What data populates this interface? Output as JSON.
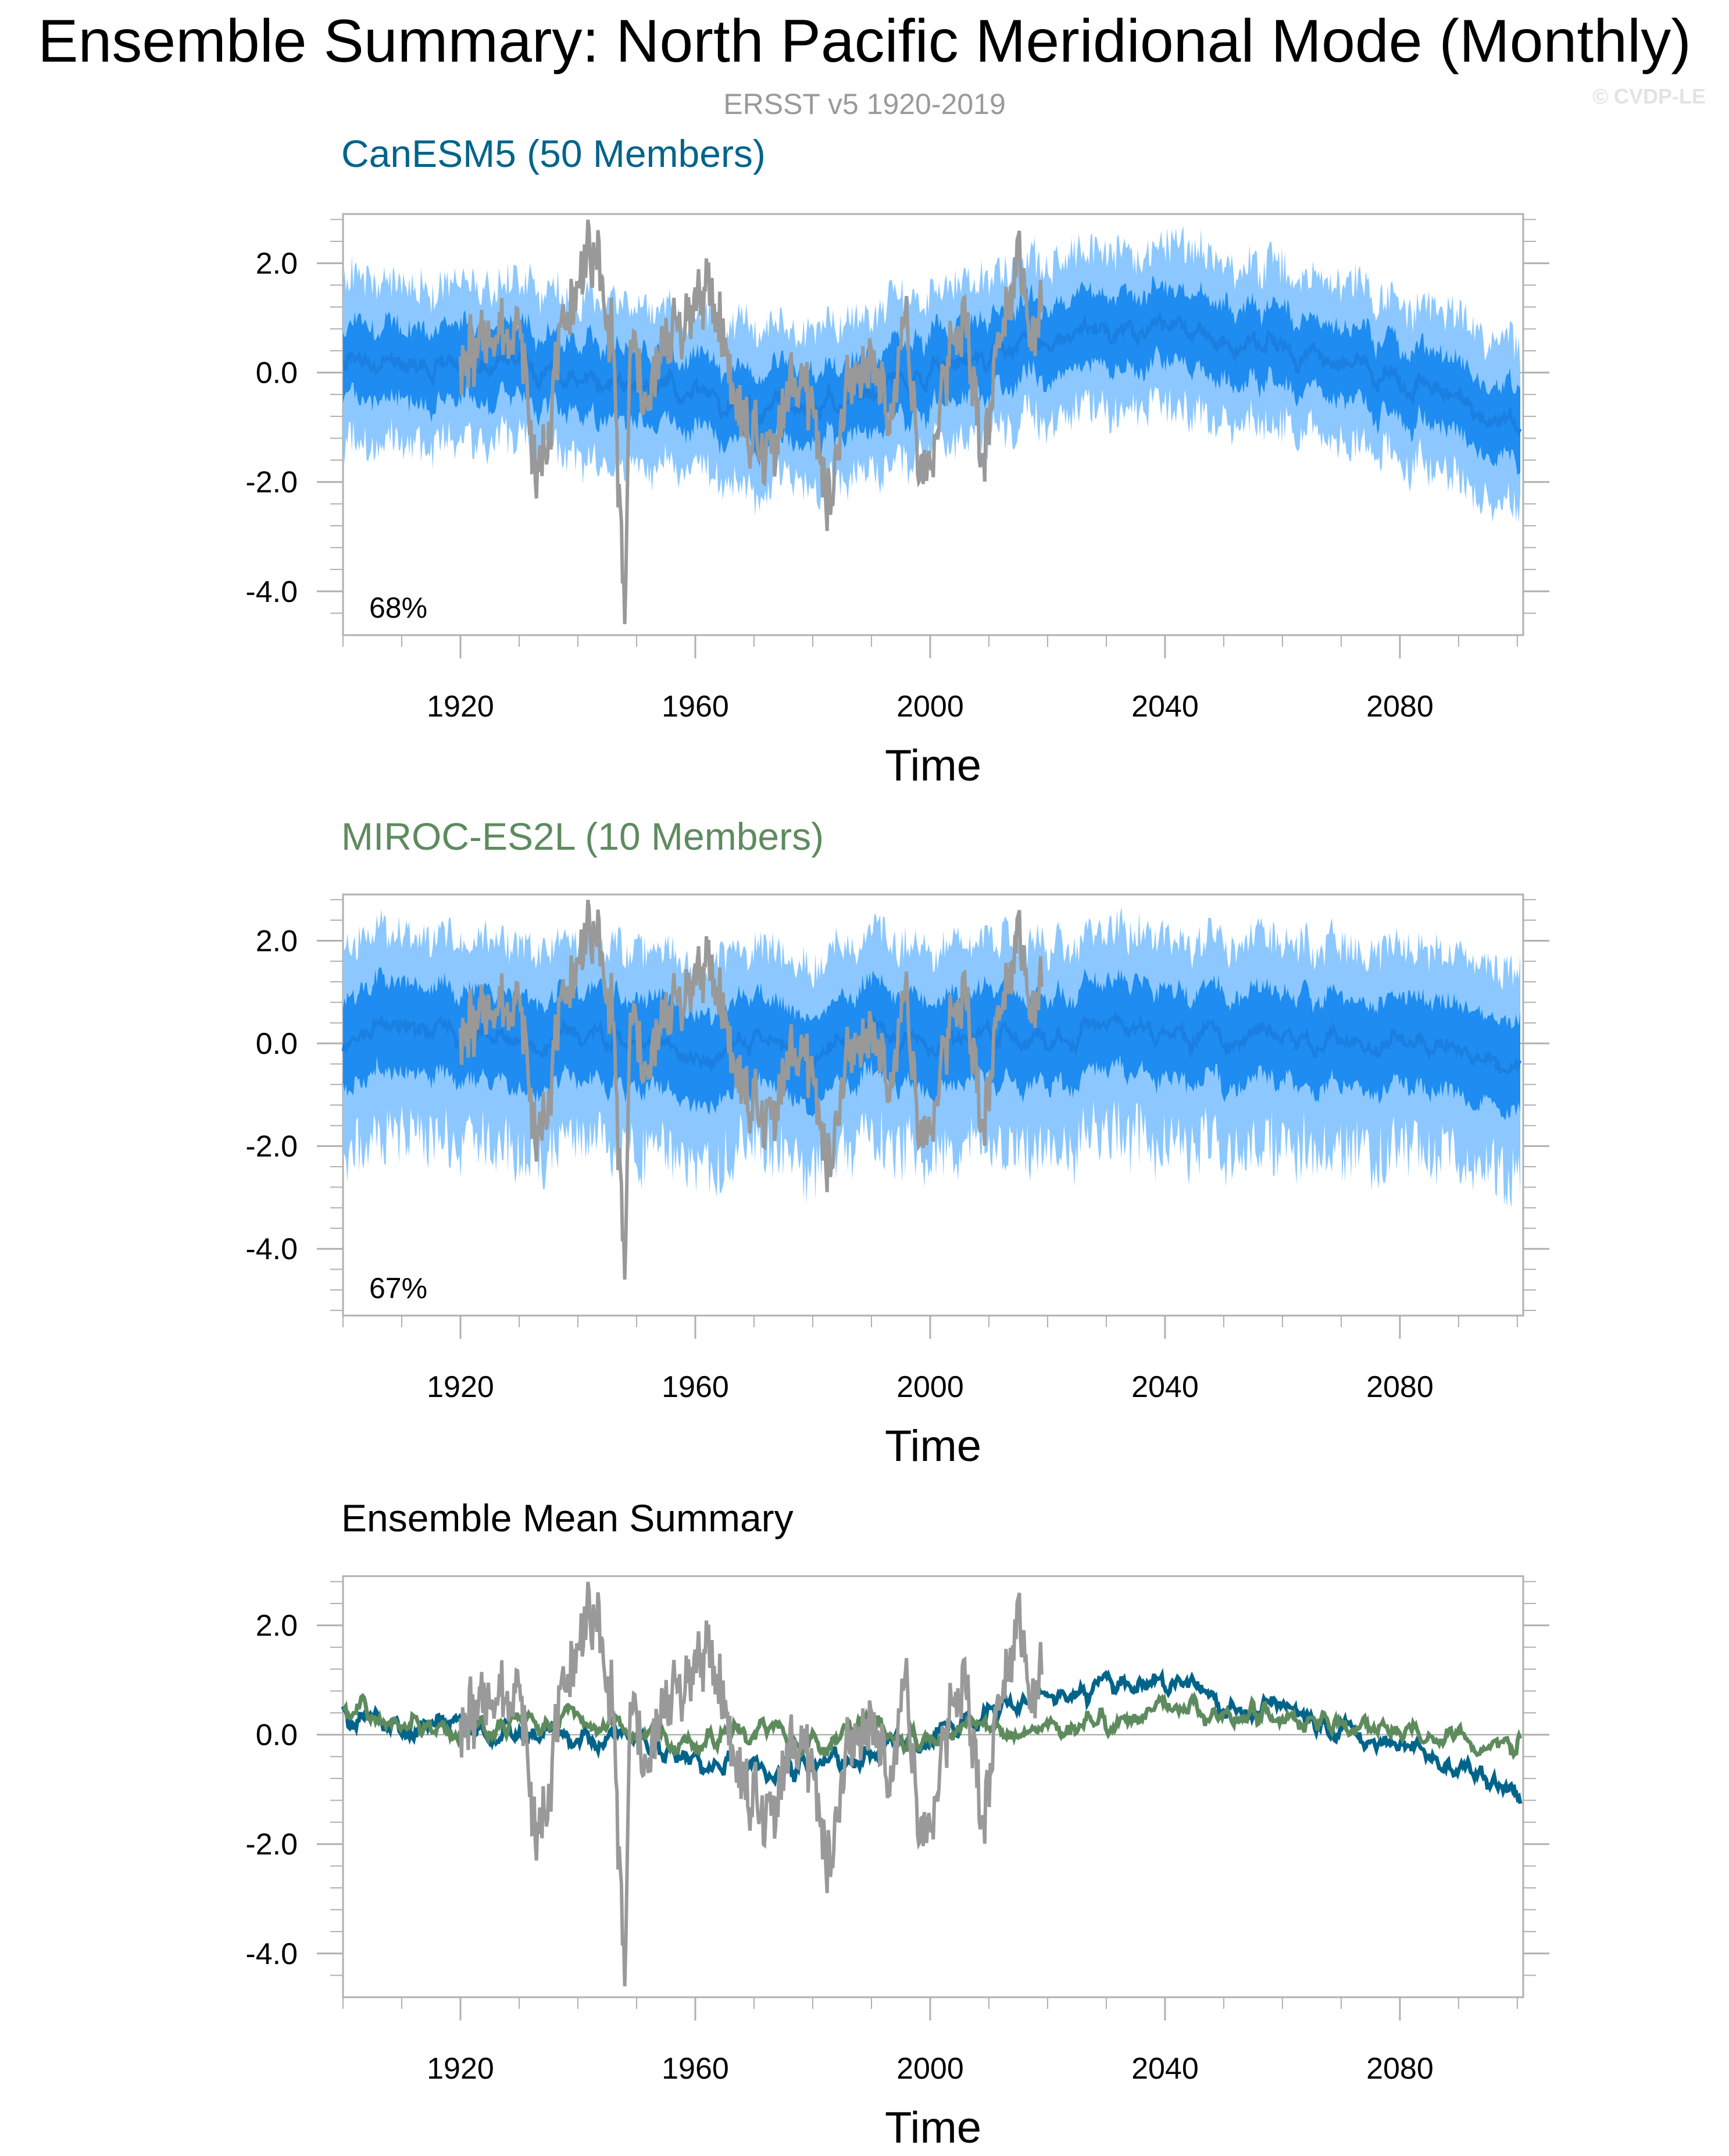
{
  "header": {
    "title": "Ensemble Summary: North Pacific Meridional Mode (Monthly)",
    "subtitle": "ERSST v5 1920-2019",
    "copyright": "© CVDP-LE"
  },
  "colors": {
    "observed": "#999999",
    "canesm5": "#00648a",
    "miroc": "#5e8b5e",
    "ensemble_mean_band": "#1e8cf0",
    "ensemble_spread_band": "#8cc8ff",
    "zero_line": "#a0a0a0",
    "frame": "#b0b0b0"
  },
  "panels": [
    {
      "title": "CanESM5 (50 Members)",
      "title_color": "#00648a",
      "annotation": "68%",
      "xlabel": "Time"
    },
    {
      "title": "MIROC-ES2L (10 Members)",
      "title_color": "#5e8b5e",
      "annotation": "67%",
      "xlabel": "Time"
    },
    {
      "title": "Ensemble Mean Summary",
      "title_color": "#000000",
      "annotation": "",
      "xlabel": "Time"
    }
  ],
  "chart_data": [
    {
      "type": "line",
      "title": "CanESM5 (50 Members)",
      "xlabel": "Time",
      "ylabel": "",
      "xlim": [
        1900,
        2101
      ],
      "ylim": [
        -4.8,
        2.9
      ],
      "xticks": [
        1920,
        1960,
        2000,
        2040,
        2080
      ],
      "yticks": [
        2.0,
        0.0,
        -2.0,
        -4.0
      ],
      "ytick_labels": [
        "2.0",
        "0.0",
        "-2.0",
        "-4.0"
      ],
      "annotation": "68%",
      "observed": {
        "x": [
          1920,
          1925,
          1930,
          1933,
          1935,
          1938,
          1940,
          1943,
          1946,
          1948,
          1949,
          1952,
          1955,
          1958,
          1962,
          1965,
          1968,
          1972,
          1976,
          1980,
          1983,
          1986,
          1990,
          1993,
          1996,
          1998,
          2000,
          2003,
          2006,
          2009,
          2012,
          2015,
          2017,
          2019
        ],
        "y": [
          0.3,
          0.5,
          0.9,
          -2.3,
          -0.9,
          0.8,
          1.6,
          2.2,
          0.4,
          -4.6,
          0.6,
          -0.7,
          1.0,
          0.6,
          1.8,
          0.3,
          -0.9,
          -1.6,
          -0.3,
          -0.5,
          -2.6,
          -0.1,
          0.4,
          -1.1,
          1.4,
          -2.0,
          -1.6,
          0.3,
          0.8,
          -1.5,
          0.7,
          2.5,
          0.5,
          1.1
        ]
      },
      "ensemble_mean": {
        "x": [
          1900,
          1910,
          1920,
          1930,
          1940,
          1950,
          1960,
          1970,
          1980,
          1990,
          2000,
          2010,
          2020,
          2030,
          2040,
          2050,
          2060,
          2070,
          2080,
          2090,
          2100
        ],
        "y": [
          0.25,
          0.1,
          0.2,
          0.1,
          -0.1,
          -0.2,
          -0.4,
          -0.7,
          -0.6,
          -0.4,
          0.0,
          0.4,
          0.6,
          0.8,
          0.8,
          0.6,
          0.4,
          0.1,
          -0.2,
          -0.5,
          -1.0
        ]
      },
      "band_spread_inner": 0.5,
      "band_spread_outer": 1.1
    },
    {
      "type": "line",
      "title": "MIROC-ES2L (10 Members)",
      "xlabel": "Time",
      "ylabel": "",
      "xlim": [
        1900,
        2101
      ],
      "ylim": [
        -5.3,
        2.9
      ],
      "xticks": [
        1920,
        1960,
        2000,
        2040,
        2080
      ],
      "yticks": [
        2.0,
        0.0,
        -2.0,
        -4.0
      ],
      "ytick_labels": [
        "2.0",
        "0.0",
        "-2.0",
        "-4.0"
      ],
      "annotation": "67%",
      "observed": {
        "x": [
          1920,
          1925,
          1930,
          1933,
          1935,
          1938,
          1940,
          1943,
          1946,
          1948,
          1949,
          1952,
          1955,
          1958,
          1962,
          1965,
          1968,
          1972,
          1976,
          1980,
          1983,
          1986,
          1990,
          1993,
          1996,
          1998,
          2000,
          2003,
          2006,
          2009,
          2012,
          2015,
          2017,
          2019
        ],
        "y": [
          0.3,
          0.5,
          0.9,
          -2.3,
          -0.9,
          0.8,
          1.6,
          2.2,
          0.4,
          -4.6,
          0.6,
          -0.7,
          1.0,
          0.6,
          1.8,
          0.3,
          -0.9,
          -1.6,
          -0.3,
          -0.5,
          -2.6,
          -0.1,
          0.4,
          -1.1,
          1.4,
          -2.0,
          -1.6,
          0.3,
          0.8,
          -1.5,
          0.7,
          2.5,
          0.5,
          1.1
        ]
      },
      "ensemble_mean": {
        "x": [
          1900,
          1910,
          1920,
          1930,
          1940,
          1950,
          1960,
          1970,
          1980,
          1990,
          2000,
          2010,
          2020,
          2030,
          2040,
          2050,
          2060,
          2070,
          2080,
          2090,
          2100
        ],
        "y": [
          0.2,
          0.3,
          0.1,
          0.0,
          0.2,
          0.1,
          -0.3,
          0.0,
          -0.3,
          0.2,
          -0.1,
          0.1,
          0.0,
          0.3,
          0.2,
          0.1,
          0.0,
          0.1,
          0.0,
          -0.1,
          -0.3
        ]
      },
      "band_spread_inner": 0.7,
      "band_spread_outer": 1.5
    },
    {
      "type": "line",
      "title": "Ensemble Mean Summary",
      "xlabel": "Time",
      "ylabel": "",
      "xlim": [
        1900,
        2101
      ],
      "ylim": [
        -4.8,
        2.9
      ],
      "xticks": [
        1920,
        1960,
        2000,
        2040,
        2080
      ],
      "yticks": [
        2.0,
        0.0,
        -2.0,
        -4.0
      ],
      "ytick_labels": [
        "2.0",
        "0.0",
        "-2.0",
        "-4.0"
      ],
      "observed": {
        "x": [
          1920,
          1925,
          1930,
          1933,
          1935,
          1938,
          1940,
          1943,
          1946,
          1948,
          1949,
          1952,
          1955,
          1958,
          1962,
          1965,
          1968,
          1972,
          1976,
          1980,
          1983,
          1986,
          1990,
          1993,
          1996,
          1998,
          2000,
          2003,
          2006,
          2009,
          2012,
          2015,
          2017,
          2019
        ],
        "y": [
          0.3,
          0.5,
          0.9,
          -2.3,
          -0.9,
          0.8,
          1.6,
          2.2,
          0.4,
          -4.6,
          0.6,
          -0.7,
          1.0,
          0.6,
          1.8,
          0.3,
          -0.9,
          -1.6,
          -0.3,
          -0.5,
          -2.6,
          -0.1,
          0.4,
          -1.1,
          1.4,
          -2.0,
          -1.6,
          0.3,
          0.8,
          -1.5,
          0.7,
          2.5,
          0.5,
          1.1
        ]
      },
      "series": [
        {
          "x": [
            1900,
            1910,
            1920,
            1930,
            1940,
            1950,
            1960,
            1970,
            1980,
            1990,
            2000,
            2010,
            2020,
            2030,
            2040,
            2050,
            2060,
            2070,
            2080,
            2090,
            2100
          ],
          "y": [
            0.4,
            0.0,
            0.2,
            0.0,
            -0.1,
            -0.2,
            -0.4,
            -0.7,
            -0.5,
            -0.4,
            0.0,
            0.4,
            0.6,
            0.9,
            1.0,
            0.6,
            0.4,
            0.1,
            -0.3,
            -0.6,
            -1.1
          ]
        },
        {
          "x": [
            1900,
            1910,
            1920,
            1930,
            1940,
            1950,
            1960,
            1970,
            1980,
            1990,
            2000,
            2010,
            2020,
            2030,
            2040,
            2050,
            2060,
            2070,
            2080,
            2090,
            2100
          ],
          "y": [
            0.5,
            0.3,
            0.1,
            0.2,
            0.3,
            0.0,
            -0.2,
            0.1,
            -0.2,
            0.2,
            -0.2,
            0.2,
            0.1,
            0.2,
            0.5,
            0.4,
            0.3,
            0.2,
            0.1,
            -0.1,
            -0.2
          ]
        }
      ]
    }
  ]
}
